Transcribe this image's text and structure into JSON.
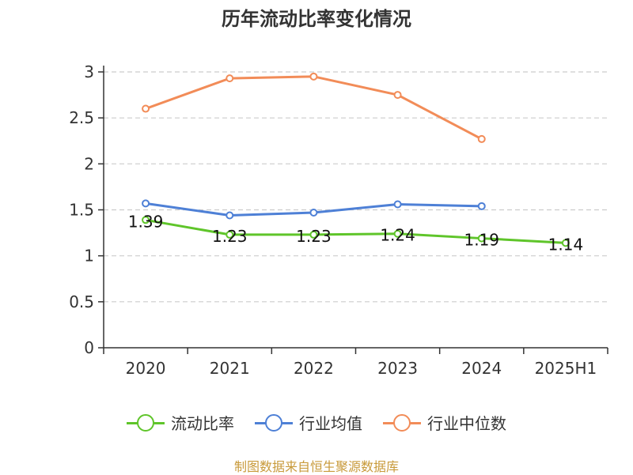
{
  "title": "历年流动比率变化情况",
  "source": "制图数据来自恒生聚源数据库",
  "colors": {
    "流动比率": "#5fc52a",
    "行业均值": "#4e80d6",
    "行业中位数": "#f28c58",
    "grid": "#cccccc",
    "axis": "#333333"
  },
  "chart_data": {
    "type": "line",
    "title": "历年流动比率变化情况",
    "categories": [
      "2020",
      "2021",
      "2022",
      "2023",
      "2024",
      "2025H1"
    ],
    "ylim": [
      0,
      3
    ],
    "yticks": [
      "0",
      "0.5",
      "1",
      "1.5",
      "2",
      "2.5",
      "3"
    ],
    "grid": true,
    "legend_position": "bottom",
    "series": [
      {
        "name": "流动比率",
        "values": [
          1.39,
          1.23,
          1.23,
          1.24,
          1.19,
          1.14
        ],
        "labels": [
          "1.39",
          "1.23",
          "1.23",
          "1.24",
          "1.19",
          "1.14"
        ]
      },
      {
        "name": "行业均值",
        "values": [
          1.57,
          1.44,
          1.47,
          1.56,
          1.54,
          null
        ]
      },
      {
        "name": "行业中位数",
        "values": [
          2.6,
          2.93,
          2.95,
          2.75,
          2.27,
          null
        ]
      }
    ]
  }
}
